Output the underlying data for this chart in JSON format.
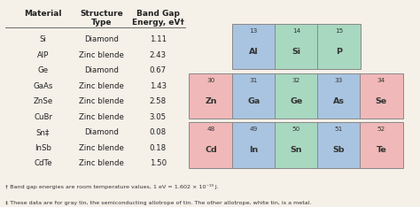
{
  "bg_color": "#f5f0e8",
  "table_data": [
    [
      "Si",
      "Diamond",
      "1.11"
    ],
    [
      "AlP",
      "Zinc blende",
      "2.43"
    ],
    [
      "Ge",
      "Diamond",
      "0.67"
    ],
    [
      "GaAs",
      "Zinc blende",
      "1.43"
    ],
    [
      "ZnSe",
      "Zinc blende",
      "2.58"
    ],
    [
      "CuBr",
      "Zinc blende",
      "3.05"
    ],
    [
      "Sn‡",
      "Diamond",
      "0.08"
    ],
    [
      "InSb",
      "Zinc blende",
      "0.18"
    ],
    [
      "CdTe",
      "Zinc blende",
      "1.50"
    ]
  ],
  "col_headers": [
    "Material",
    "Structure\nType",
    "Band Gap\nEnergy, eV†"
  ],
  "footnote1": "† Band gap energies are room temperature values, 1 eV = 1.602 × 10⁻¹⁹ J.",
  "footnote2": "‡ These data are for gray tin, the semiconducting allotrope of tin. The other allotrope, white tin, is a metal.",
  "periodic_elements": [
    {
      "num": "13",
      "sym": "Al",
      "col": 1,
      "row": 0,
      "color": "#a8c4e0"
    },
    {
      "num": "14",
      "sym": "Si",
      "col": 2,
      "row": 0,
      "color": "#a8d8c0"
    },
    {
      "num": "15",
      "sym": "P",
      "col": 3,
      "row": 0,
      "color": "#a8d8c0"
    },
    {
      "num": "30",
      "sym": "Zn",
      "col": 0,
      "row": 1,
      "color": "#f0b8b8"
    },
    {
      "num": "31",
      "sym": "Ga",
      "col": 1,
      "row": 1,
      "color": "#a8c4e0"
    },
    {
      "num": "32",
      "sym": "Ge",
      "col": 2,
      "row": 1,
      "color": "#a8d8c0"
    },
    {
      "num": "33",
      "sym": "As",
      "col": 3,
      "row": 1,
      "color": "#a8c4e0"
    },
    {
      "num": "34",
      "sym": "Se",
      "col": 4,
      "row": 1,
      "color": "#f0b8b8"
    },
    {
      "num": "48",
      "sym": "Cd",
      "col": 0,
      "row": 2,
      "color": "#f0b8b8"
    },
    {
      "num": "49",
      "sym": "In",
      "col": 1,
      "row": 2,
      "color": "#a8c4e0"
    },
    {
      "num": "50",
      "sym": "Sn",
      "col": 2,
      "row": 2,
      "color": "#a8d8c0"
    },
    {
      "num": "51",
      "sym": "Sb",
      "col": 3,
      "row": 2,
      "color": "#a8c4e0"
    },
    {
      "num": "52",
      "sym": "Te",
      "col": 4,
      "row": 2,
      "color": "#f0b8b8"
    }
  ]
}
